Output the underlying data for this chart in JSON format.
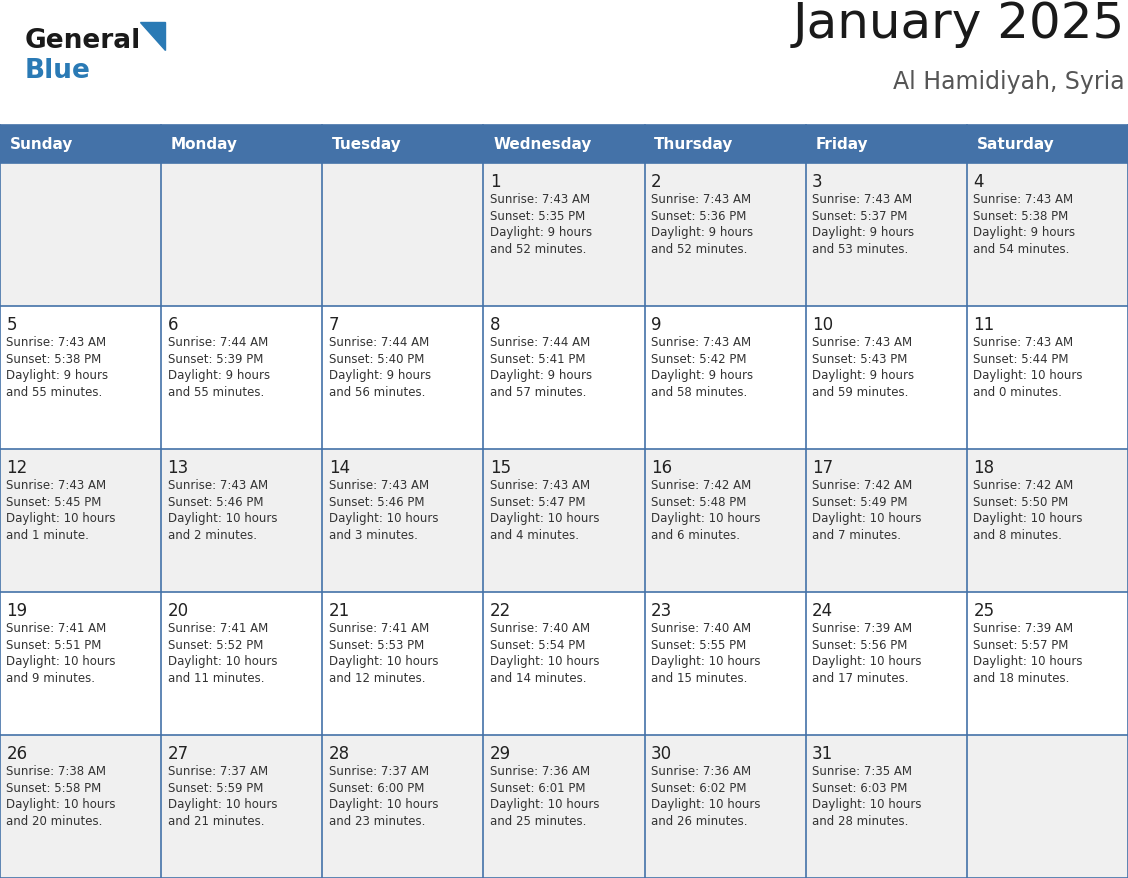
{
  "title": "January 2025",
  "subtitle": "Al Hamidiyah, Syria",
  "days_of_week": [
    "Sunday",
    "Monday",
    "Tuesday",
    "Wednesday",
    "Thursday",
    "Friday",
    "Saturday"
  ],
  "header_bg": "#4472a8",
  "header_text": "#ffffff",
  "cell_bg_odd": "#f0f0f0",
  "cell_bg_even": "#ffffff",
  "cell_border": "#4472a8",
  "title_color": "#1a1a1a",
  "subtitle_color": "#555555",
  "day_number_color": "#222222",
  "cell_text_color": "#333333",
  "logo_general_color": "#1a1a1a",
  "logo_blue_color": "#2a7ab5",
  "logo_triangle_color": "#2a7ab5",
  "calendar": [
    [
      {
        "day": "",
        "info": ""
      },
      {
        "day": "",
        "info": ""
      },
      {
        "day": "",
        "info": ""
      },
      {
        "day": "1",
        "info": "Sunrise: 7:43 AM\nSunset: 5:35 PM\nDaylight: 9 hours\nand 52 minutes."
      },
      {
        "day": "2",
        "info": "Sunrise: 7:43 AM\nSunset: 5:36 PM\nDaylight: 9 hours\nand 52 minutes."
      },
      {
        "day": "3",
        "info": "Sunrise: 7:43 AM\nSunset: 5:37 PM\nDaylight: 9 hours\nand 53 minutes."
      },
      {
        "day": "4",
        "info": "Sunrise: 7:43 AM\nSunset: 5:38 PM\nDaylight: 9 hours\nand 54 minutes."
      }
    ],
    [
      {
        "day": "5",
        "info": "Sunrise: 7:43 AM\nSunset: 5:38 PM\nDaylight: 9 hours\nand 55 minutes."
      },
      {
        "day": "6",
        "info": "Sunrise: 7:44 AM\nSunset: 5:39 PM\nDaylight: 9 hours\nand 55 minutes."
      },
      {
        "day": "7",
        "info": "Sunrise: 7:44 AM\nSunset: 5:40 PM\nDaylight: 9 hours\nand 56 minutes."
      },
      {
        "day": "8",
        "info": "Sunrise: 7:44 AM\nSunset: 5:41 PM\nDaylight: 9 hours\nand 57 minutes."
      },
      {
        "day": "9",
        "info": "Sunrise: 7:43 AM\nSunset: 5:42 PM\nDaylight: 9 hours\nand 58 minutes."
      },
      {
        "day": "10",
        "info": "Sunrise: 7:43 AM\nSunset: 5:43 PM\nDaylight: 9 hours\nand 59 minutes."
      },
      {
        "day": "11",
        "info": "Sunrise: 7:43 AM\nSunset: 5:44 PM\nDaylight: 10 hours\nand 0 minutes."
      }
    ],
    [
      {
        "day": "12",
        "info": "Sunrise: 7:43 AM\nSunset: 5:45 PM\nDaylight: 10 hours\nand 1 minute."
      },
      {
        "day": "13",
        "info": "Sunrise: 7:43 AM\nSunset: 5:46 PM\nDaylight: 10 hours\nand 2 minutes."
      },
      {
        "day": "14",
        "info": "Sunrise: 7:43 AM\nSunset: 5:46 PM\nDaylight: 10 hours\nand 3 minutes."
      },
      {
        "day": "15",
        "info": "Sunrise: 7:43 AM\nSunset: 5:47 PM\nDaylight: 10 hours\nand 4 minutes."
      },
      {
        "day": "16",
        "info": "Sunrise: 7:42 AM\nSunset: 5:48 PM\nDaylight: 10 hours\nand 6 minutes."
      },
      {
        "day": "17",
        "info": "Sunrise: 7:42 AM\nSunset: 5:49 PM\nDaylight: 10 hours\nand 7 minutes."
      },
      {
        "day": "18",
        "info": "Sunrise: 7:42 AM\nSunset: 5:50 PM\nDaylight: 10 hours\nand 8 minutes."
      }
    ],
    [
      {
        "day": "19",
        "info": "Sunrise: 7:41 AM\nSunset: 5:51 PM\nDaylight: 10 hours\nand 9 minutes."
      },
      {
        "day": "20",
        "info": "Sunrise: 7:41 AM\nSunset: 5:52 PM\nDaylight: 10 hours\nand 11 minutes."
      },
      {
        "day": "21",
        "info": "Sunrise: 7:41 AM\nSunset: 5:53 PM\nDaylight: 10 hours\nand 12 minutes."
      },
      {
        "day": "22",
        "info": "Sunrise: 7:40 AM\nSunset: 5:54 PM\nDaylight: 10 hours\nand 14 minutes."
      },
      {
        "day": "23",
        "info": "Sunrise: 7:40 AM\nSunset: 5:55 PM\nDaylight: 10 hours\nand 15 minutes."
      },
      {
        "day": "24",
        "info": "Sunrise: 7:39 AM\nSunset: 5:56 PM\nDaylight: 10 hours\nand 17 minutes."
      },
      {
        "day": "25",
        "info": "Sunrise: 7:39 AM\nSunset: 5:57 PM\nDaylight: 10 hours\nand 18 minutes."
      }
    ],
    [
      {
        "day": "26",
        "info": "Sunrise: 7:38 AM\nSunset: 5:58 PM\nDaylight: 10 hours\nand 20 minutes."
      },
      {
        "day": "27",
        "info": "Sunrise: 7:37 AM\nSunset: 5:59 PM\nDaylight: 10 hours\nand 21 minutes."
      },
      {
        "day": "28",
        "info": "Sunrise: 7:37 AM\nSunset: 6:00 PM\nDaylight: 10 hours\nand 23 minutes."
      },
      {
        "day": "29",
        "info": "Sunrise: 7:36 AM\nSunset: 6:01 PM\nDaylight: 10 hours\nand 25 minutes."
      },
      {
        "day": "30",
        "info": "Sunrise: 7:36 AM\nSunset: 6:02 PM\nDaylight: 10 hours\nand 26 minutes."
      },
      {
        "day": "31",
        "info": "Sunrise: 7:35 AM\nSunset: 6:03 PM\nDaylight: 10 hours\nand 28 minutes."
      },
      {
        "day": "",
        "info": ""
      }
    ]
  ]
}
